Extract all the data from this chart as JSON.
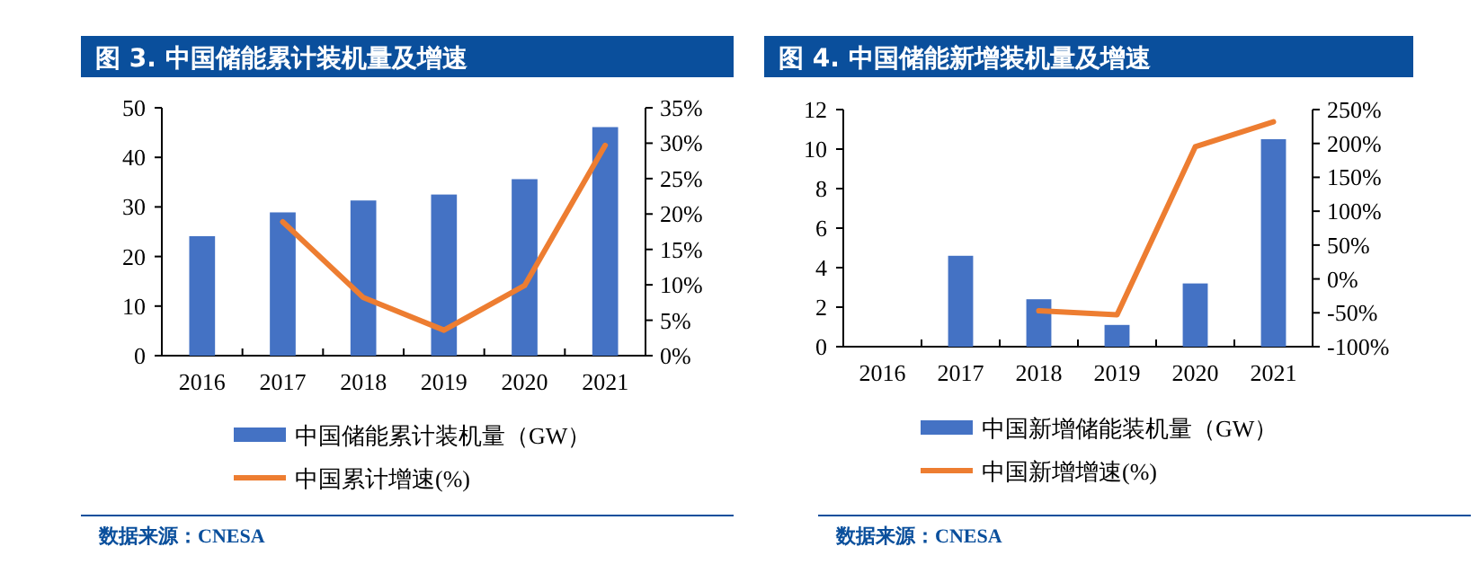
{
  "chart_data": [
    {
      "type": "bar",
      "title": "图 3. 中国储能累计装机量及增速",
      "categories": [
        "2016",
        "2017",
        "2018",
        "2019",
        "2020",
        "2021"
      ],
      "series": [
        {
          "name": "中国储能累计装机量（GW）",
          "color": "#4472c4",
          "values": [
            24.1,
            28.9,
            31.3,
            32.5,
            35.6,
            46.1
          ]
        },
        {
          "name": "中国累计增速(%)",
          "type": "line",
          "axis": "y2",
          "color": "#ed7d31",
          "values": [
            null,
            18.9,
            8.2,
            3.6,
            9.9,
            29.7
          ]
        }
      ],
      "ylim": [
        0,
        50
      ],
      "yticks": [
        0,
        10,
        20,
        30,
        40,
        50
      ],
      "y2lim": [
        0,
        35
      ],
      "y2ticks": [
        {
          "value": 0,
          "label": "0%"
        },
        {
          "value": 5,
          "label": "5%"
        },
        {
          "value": 10,
          "label": "10%"
        },
        {
          "value": 15,
          "label": "15%"
        },
        {
          "value": 20,
          "label": "20%"
        },
        {
          "value": 25,
          "label": "25%"
        },
        {
          "value": 30,
          "label": "30%"
        },
        {
          "value": 35,
          "label": "35%"
        }
      ],
      "legend": "bottom",
      "annotations": [
        "数据来源：CNESA"
      ]
    },
    {
      "type": "bar",
      "title": "图 4. 中国储能新增装机量及增速",
      "categories": [
        "2016",
        "2017",
        "2018",
        "2019",
        "2020",
        "2021"
      ],
      "series": [
        {
          "name": "中国新增储能装机量（GW）",
          "color": "#4472c4",
          "values": [
            null,
            4.6,
            2.4,
            1.1,
            3.2,
            10.5
          ]
        },
        {
          "name": "中国新增增速(%)",
          "type": "line",
          "axis": "y2",
          "color": "#ed7d31",
          "values": [
            null,
            null,
            -47,
            -53,
            195,
            232
          ]
        }
      ],
      "ylim": [
        0,
        12
      ],
      "yticks": [
        0,
        2,
        4,
        6,
        8,
        10,
        12
      ],
      "y2lim": [
        -100,
        250
      ],
      "y2ticks": [
        {
          "value": -100,
          "label": "-100%"
        },
        {
          "value": -50,
          "label": "-50%"
        },
        {
          "value": 0,
          "label": "0%"
        },
        {
          "value": 50,
          "label": "50%"
        },
        {
          "value": 100,
          "label": "100%"
        },
        {
          "value": 150,
          "label": "150%"
        },
        {
          "value": 200,
          "label": "200%"
        },
        {
          "value": 250,
          "label": "250%"
        }
      ],
      "legend": "bottom",
      "annotations": [
        "数据来源：CNESA"
      ]
    }
  ]
}
